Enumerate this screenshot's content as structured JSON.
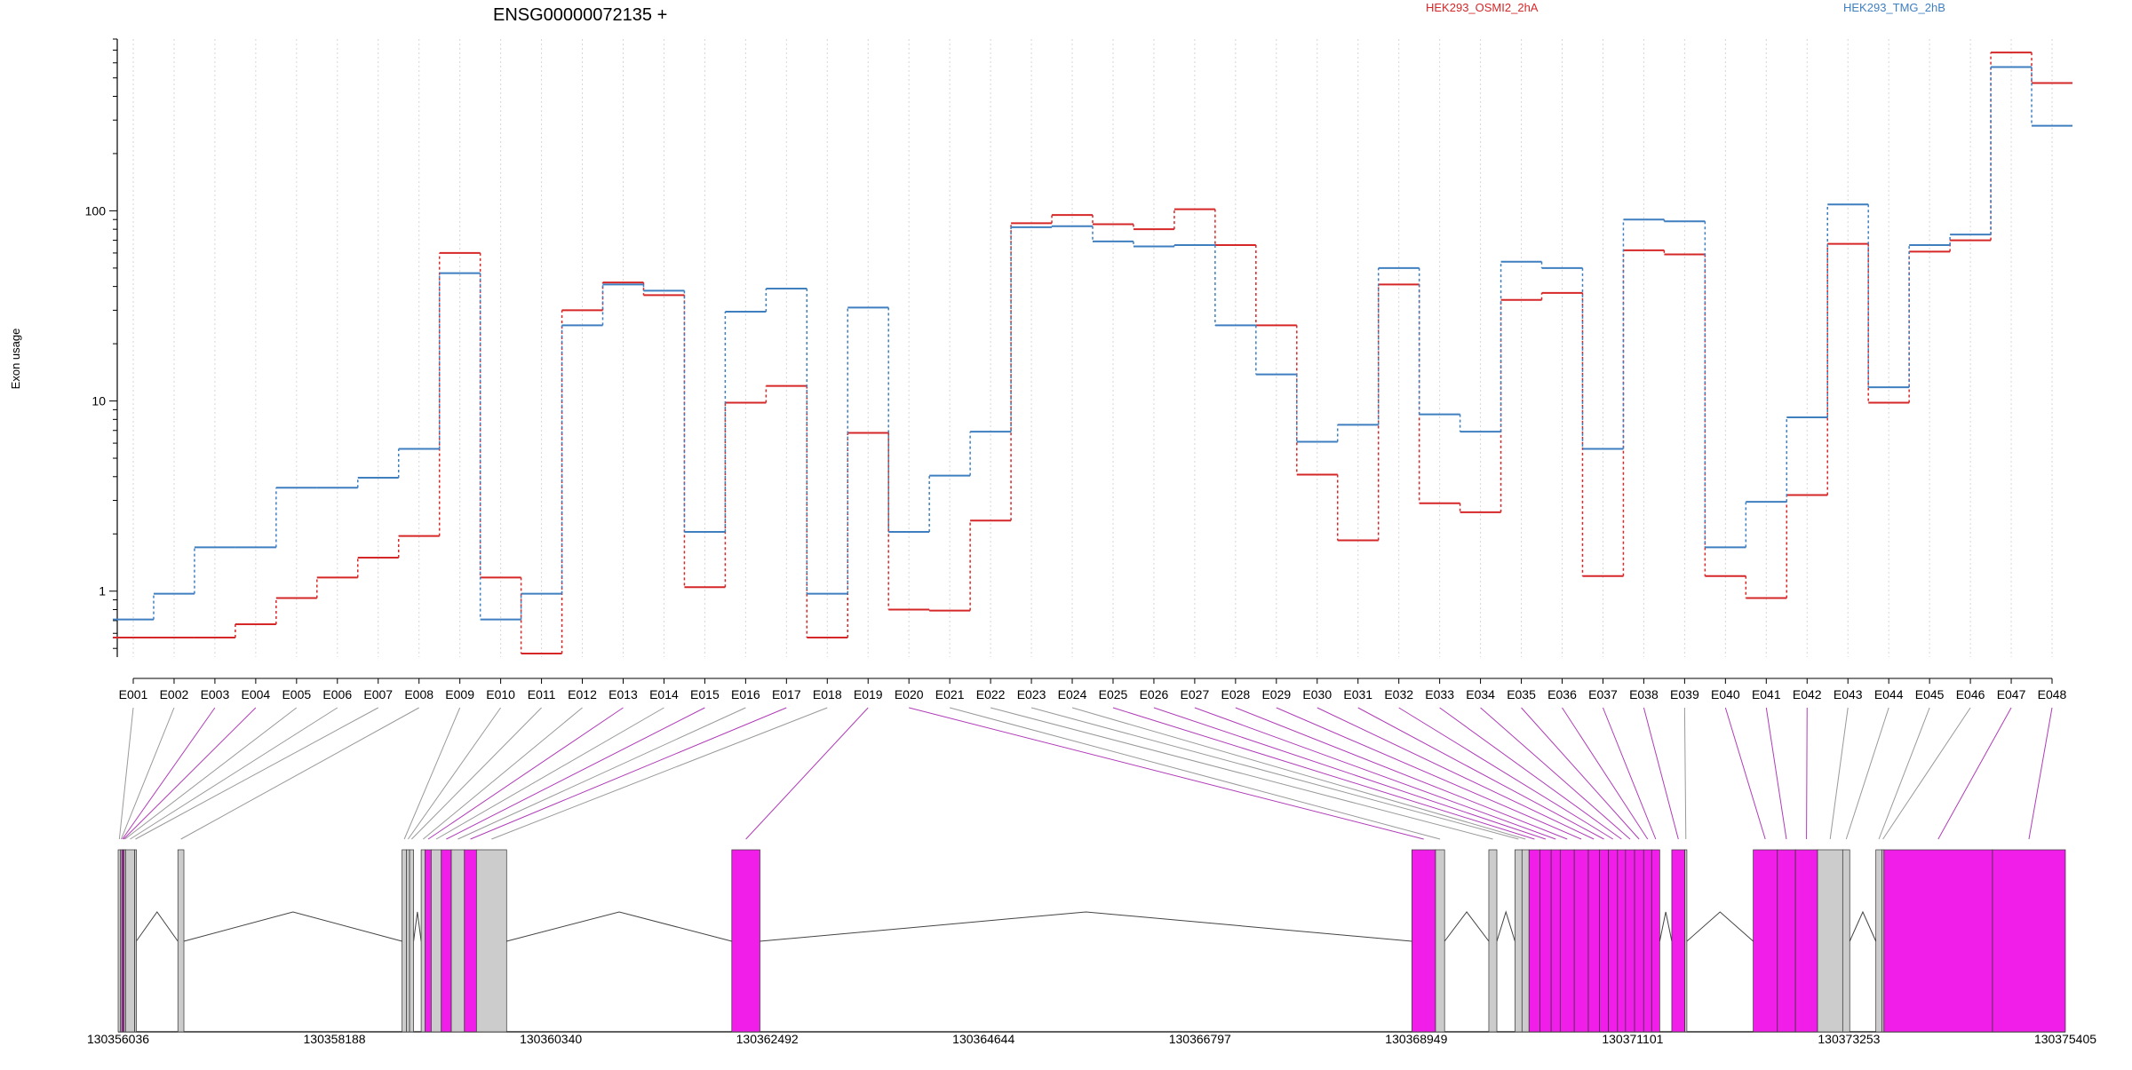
{
  "chart_data": {
    "type": "line",
    "title": "ENSG00000072135 +",
    "xlabel": "",
    "ylabel": "Exon usage",
    "y_scale": "log",
    "ylim": [
      0.45,
      800
    ],
    "y_ticks": [
      {
        "value": 1,
        "label": "1"
      },
      {
        "value": 10,
        "label": "10"
      },
      {
        "value": 100,
        "label": "100"
      }
    ],
    "categories": [
      "E001",
      "E002",
      "E003",
      "E004",
      "E005",
      "E006",
      "E007",
      "E008",
      "E009",
      "E010",
      "E011",
      "E012",
      "E013",
      "E014",
      "E015",
      "E016",
      "E017",
      "E018",
      "E019",
      "E020",
      "E021",
      "E022",
      "E023",
      "E024",
      "E025",
      "E026",
      "E027",
      "E028",
      "E029",
      "E030",
      "E031",
      "E032",
      "E033",
      "E034",
      "E035",
      "E036",
      "E037",
      "E038",
      "E039",
      "E040",
      "E041",
      "E042",
      "E043",
      "E044",
      "E045",
      "E046",
      "E047",
      "E048"
    ],
    "series": [
      {
        "name": "HEK293_OSMI2_2hA",
        "color": "#d62728",
        "values": [
          0.57,
          0.57,
          0.57,
          0.67,
          0.92,
          1.18,
          1.5,
          1.95,
          60,
          1.18,
          0.47,
          30,
          42,
          36,
          1.05,
          9.8,
          12,
          0.57,
          6.8,
          0.8,
          0.79,
          2.35,
          86,
          95,
          85,
          80,
          102,
          66,
          25,
          4.1,
          1.85,
          41,
          2.9,
          2.6,
          34,
          37,
          1.2,
          62,
          59,
          1.2,
          0.92,
          3.2,
          67,
          9.8,
          61,
          70,
          680,
          470
        ]
      },
      {
        "name": "HEK293_TMG_2hB",
        "color": "#3f7fc0",
        "values": [
          0.71,
          0.97,
          1.7,
          1.7,
          3.5,
          3.5,
          3.95,
          5.6,
          47,
          0.71,
          0.97,
          25,
          41,
          38,
          2.05,
          29.5,
          39,
          0.97,
          31,
          2.05,
          4.05,
          6.9,
          82,
          83,
          69,
          65,
          66,
          25,
          13.8,
          6.1,
          7.5,
          50,
          8.5,
          6.9,
          54,
          50,
          5.6,
          90,
          88,
          1.7,
          2.95,
          8.2,
          108,
          11.8,
          66,
          75,
          570,
          280
        ]
      }
    ],
    "grid": true,
    "legend": "top-right",
    "gene_model": {
      "coordinate_ticks": [
        "130356036",
        "130358188",
        "130360340",
        "130362492",
        "130364644",
        "130366797",
        "130368949",
        "130371101",
        "130373253",
        "130375405"
      ],
      "coord_range": [
        130356036,
        130375405
      ],
      "exon_colors": {
        "tested": "#f01ee8",
        "other": "#cccccc"
      },
      "link_colors": {
        "tested": "#b03cb8",
        "other": "#999999"
      },
      "exons": [
        {
          "id": "E001",
          "start": 130356036,
          "end": 130356060,
          "tested": false
        },
        {
          "id": "E002",
          "start": 130356060,
          "end": 130356072,
          "tested": false
        },
        {
          "id": "E003",
          "start": 130356072,
          "end": 130356084,
          "tested": true
        },
        {
          "id": "E004",
          "start": 130356084,
          "end": 130356096,
          "tested": true
        },
        {
          "id": "E005",
          "start": 130356096,
          "end": 130356110,
          "tested": false
        },
        {
          "id": "E006",
          "start": 130356110,
          "end": 130356200,
          "tested": false
        },
        {
          "id": "E007",
          "start": 130356200,
          "end": 130356216,
          "tested": false
        },
        {
          "id": "E008",
          "start": 130356630,
          "end": 130356690,
          "tested": false
        },
        {
          "id": "E009",
          "start": 130358860,
          "end": 130358905,
          "tested": false
        },
        {
          "id": "E010",
          "start": 130358905,
          "end": 130358935,
          "tested": false
        },
        {
          "id": "E011",
          "start": 130358935,
          "end": 130358975,
          "tested": false
        },
        {
          "id": "E012",
          "start": 130359050,
          "end": 130359090,
          "tested": false
        },
        {
          "id": "E013",
          "start": 130359090,
          "end": 130359150,
          "tested": true
        },
        {
          "id": "E014",
          "start": 130359150,
          "end": 130359250,
          "tested": false
        },
        {
          "id": "E015",
          "start": 130359250,
          "end": 130359350,
          "tested": true
        },
        {
          "id": "E016",
          "start": 130359350,
          "end": 130359480,
          "tested": false
        },
        {
          "id": "E017",
          "start": 130359480,
          "end": 130359600,
          "tested": true
        },
        {
          "id": "E018",
          "start": 130359600,
          "end": 130359900,
          "tested": false
        },
        {
          "id": "E019",
          "start": 130362140,
          "end": 130362420,
          "tested": true
        },
        {
          "id": "E020",
          "start": 130368905,
          "end": 130369140,
          "tested": true
        },
        {
          "id": "E021",
          "start": 130369140,
          "end": 130369230,
          "tested": false
        },
        {
          "id": "E022",
          "start": 130369670,
          "end": 130369750,
          "tested": false
        },
        {
          "id": "E023",
          "start": 130369930,
          "end": 130370000,
          "tested": false
        },
        {
          "id": "E024",
          "start": 130370000,
          "end": 130370070,
          "tested": false
        },
        {
          "id": "E025",
          "start": 130370070,
          "end": 130370180,
          "tested": true
        },
        {
          "id": "E026",
          "start": 130370180,
          "end": 130370290,
          "tested": true
        },
        {
          "id": "E027",
          "start": 130370290,
          "end": 130370380,
          "tested": true
        },
        {
          "id": "E028",
          "start": 130370380,
          "end": 130370520,
          "tested": true
        },
        {
          "id": "E029",
          "start": 130370520,
          "end": 130370660,
          "tested": true
        },
        {
          "id": "E030",
          "start": 130370660,
          "end": 130370770,
          "tested": true
        },
        {
          "id": "E031",
          "start": 130370770,
          "end": 130370860,
          "tested": true
        },
        {
          "id": "E032",
          "start": 130370860,
          "end": 130370950,
          "tested": true
        },
        {
          "id": "E033",
          "start": 130370950,
          "end": 130371030,
          "tested": true
        },
        {
          "id": "E034",
          "start": 130371030,
          "end": 130371120,
          "tested": true
        },
        {
          "id": "E035",
          "start": 130371120,
          "end": 130371210,
          "tested": true
        },
        {
          "id": "E036",
          "start": 130371210,
          "end": 130371290,
          "tested": true
        },
        {
          "id": "E037",
          "start": 130371290,
          "end": 130371370,
          "tested": true
        },
        {
          "id": "E038",
          "start": 130371490,
          "end": 130371620,
          "tested": true
        },
        {
          "id": "E039",
          "start": 130371620,
          "end": 130371640,
          "tested": false
        },
        {
          "id": "E040",
          "start": 130372300,
          "end": 130372540,
          "tested": true
        },
        {
          "id": "E041",
          "start": 130372540,
          "end": 130372720,
          "tested": true
        },
        {
          "id": "E042",
          "start": 130372720,
          "end": 130372940,
          "tested": true
        },
        {
          "id": "E043",
          "start": 130372940,
          "end": 130373190,
          "tested": false
        },
        {
          "id": "E044",
          "start": 130373190,
          "end": 130373260,
          "tested": false
        },
        {
          "id": "E045",
          "start": 130373520,
          "end": 130373580,
          "tested": false
        },
        {
          "id": "E046",
          "start": 130373580,
          "end": 130373600,
          "tested": false
        },
        {
          "id": "E047",
          "start": 130373600,
          "end": 130374680,
          "tested": true
        },
        {
          "id": "E048",
          "start": 130374680,
          "end": 130375405,
          "tested": true
        }
      ]
    }
  }
}
